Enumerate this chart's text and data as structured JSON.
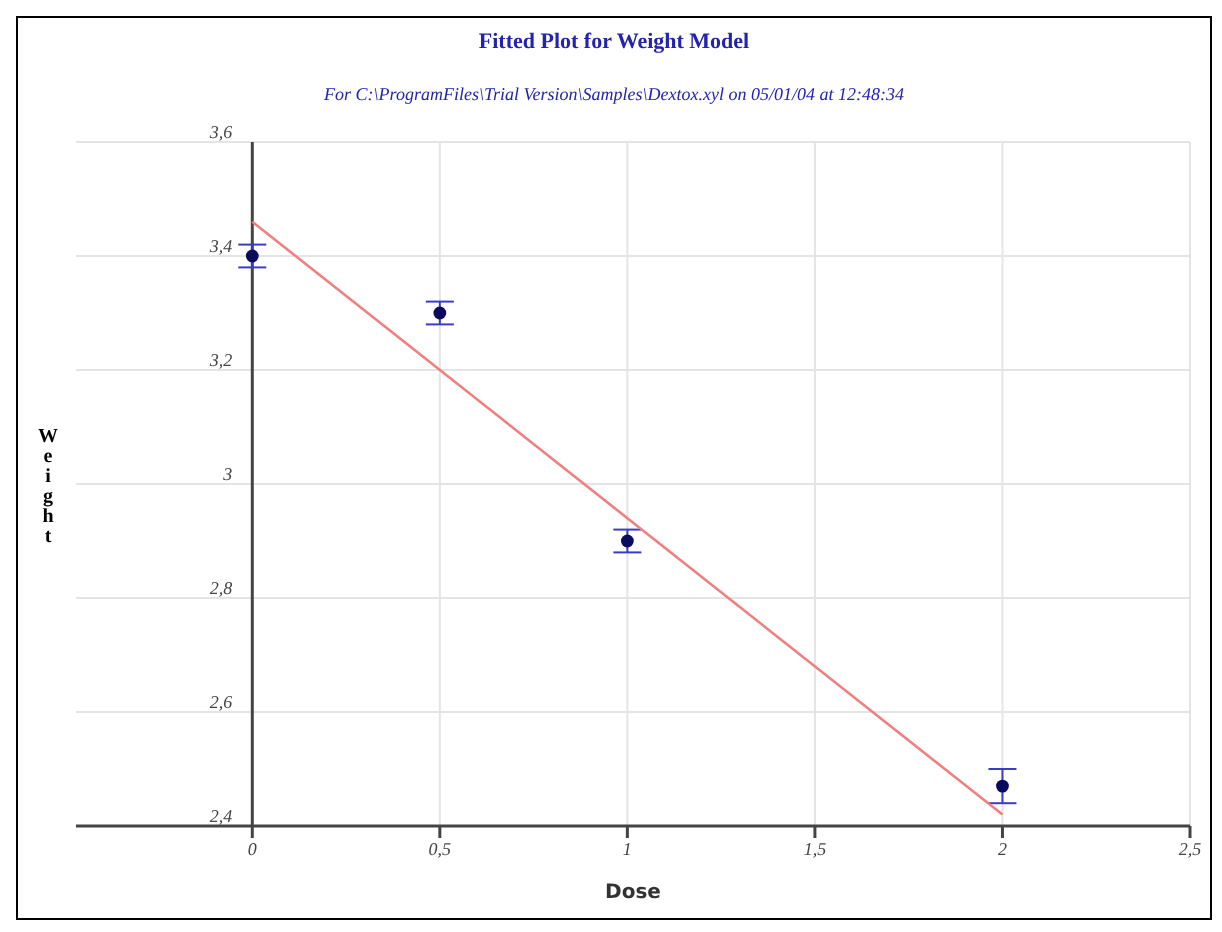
{
  "chart_data": {
    "type": "scatter",
    "title": "Fitted Plot for Weight Model",
    "subtitle": "For C:\\ProgramFiles\\Trial Version\\Samples\\Dextox.xyl on 05/01/04 at 12:48:34",
    "xlabel": "Dose",
    "ylabel": "Weight",
    "series": [
      {
        "color": "#0b0b5e",
        "x": [
          0,
          0.5,
          1,
          2
        ],
        "values": [
          3.4,
          3.3,
          2.9,
          2.47
        ],
        "errors": [
          0.02,
          0.02,
          0.02,
          0.03
        ]
      },
      {
        "type": "line",
        "color": "#f08080",
        "x": [
          0,
          2
        ],
        "values": [
          3.46,
          2.42
        ],
        "marker": "none"
      }
    ],
    "xlim": [
      -0.47,
      2.5
    ],
    "xticks": [
      0,
      {
        "value": 0.5,
        "label": "0,5"
      },
      1,
      {
        "value": 1.5,
        "label": "1,5"
      },
      2,
      {
        "value": 2.5,
        "label": "2,5"
      }
    ],
    "ylim": [
      2.4,
      3.6
    ],
    "yticks": [
      {
        "value": 2.4,
        "label": "2,4"
      },
      {
        "value": 2.6,
        "label": "2,6"
      },
      {
        "value": 2.8,
        "label": "2,8"
      },
      3,
      {
        "value": 3.2,
        "label": "3,2"
      },
      {
        "value": 3.4,
        "label": "3,4"
      },
      {
        "value": 3.6,
        "label": "3,6"
      }
    ],
    "grid": true,
    "legend": false,
    "marker": "circle"
  }
}
